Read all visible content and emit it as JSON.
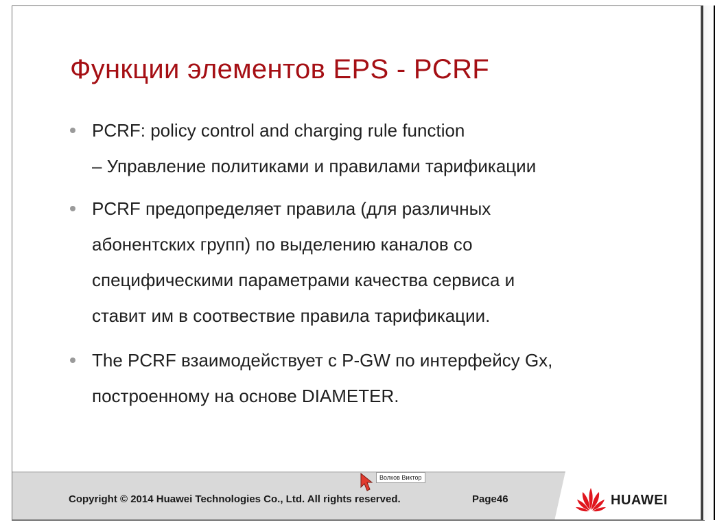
{
  "slide": {
    "title": "Функции элементов EPS - PCRF",
    "bullets": [
      {
        "lines": [
          "PCRF: policy control and charging rule function"
        ],
        "sub": "– Управление политиками и правилами тарификации"
      },
      {
        "lines": [
          "PCRF предопределяет правила (для различных",
          "абонентских групп) по выделению каналов со",
          "специфическими параметрами качества сервиса и",
          "ставит им в соотвествие правила тарификации."
        ]
      },
      {
        "lines": [
          "The PCRF взаимодействует с P-GW по интерфейсу Gx,",
          "построенному на основе DIAMETER."
        ]
      }
    ]
  },
  "footer": {
    "copyright": "Copyright © 2014 Huawei Technologies Co., Ltd. All rights reserved.",
    "page": "Page46",
    "logo_text": "HUAWEI",
    "logo_icon": "huawei-petals-icon"
  },
  "cursor": {
    "icon": "mouse-pointer-icon",
    "tooltip": "Волков Виктор"
  },
  "colors": {
    "title": "#a50f14",
    "logo": "#e0161e",
    "footer_band": "#d9d9d9",
    "text": "#1f1f1f",
    "bullet_dot": "#9a9a9a"
  }
}
